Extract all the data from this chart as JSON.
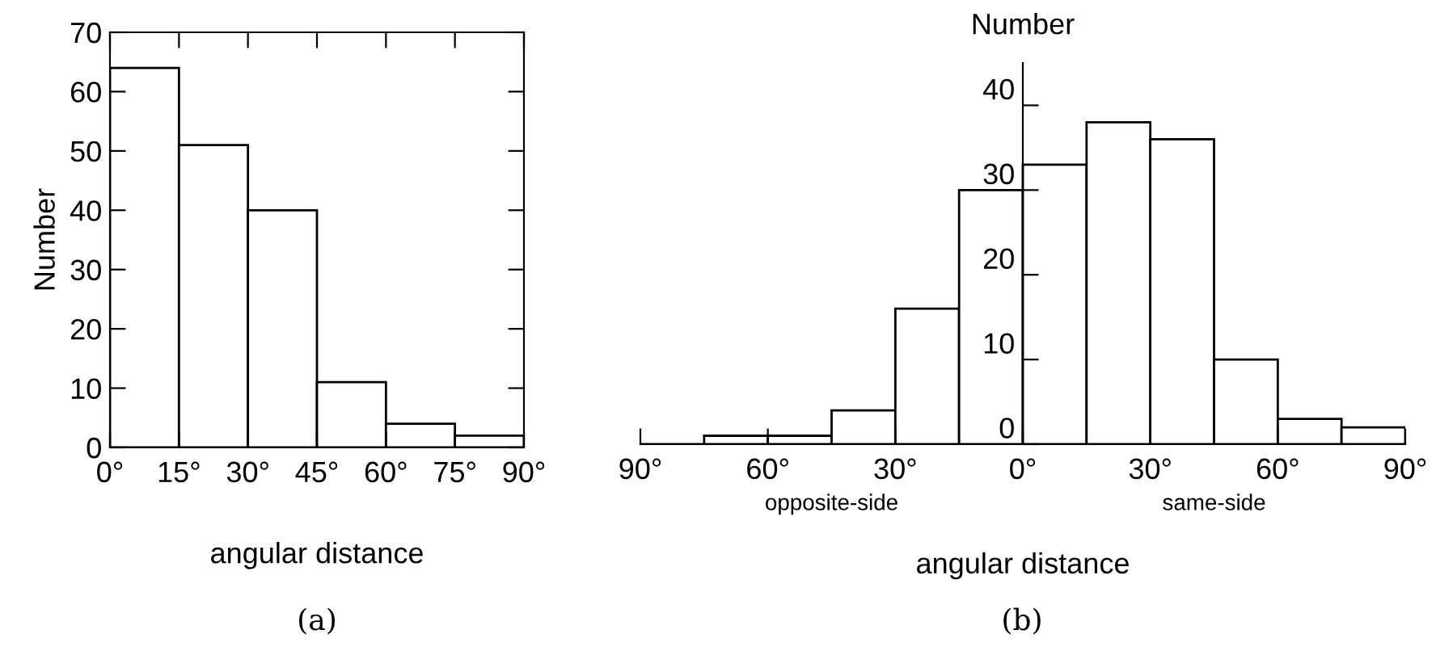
{
  "chart_data": [
    {
      "type": "histogram",
      "xlabel": "angular distance",
      "ylabel": "Number",
      "annotations": [
        "(a)"
      ],
      "color": "#000000",
      "bins": [
        0,
        15,
        30,
        45,
        60,
        75,
        90
      ],
      "values": [
        64,
        51,
        40,
        11,
        4,
        2
      ],
      "xlim": [
        0,
        90
      ],
      "xticks": [
        {
          "value": 0,
          "label": "0°"
        },
        {
          "value": 15,
          "label": "15°"
        },
        {
          "value": 30,
          "label": "30°"
        },
        {
          "value": 45,
          "label": "45°"
        },
        {
          "value": 60,
          "label": "60°"
        },
        {
          "value": 75,
          "label": "75°"
        },
        {
          "value": 90,
          "label": "90°"
        }
      ],
      "ylim": [
        0,
        70
      ],
      "yticks": [
        0,
        10,
        20,
        30,
        40,
        50,
        60,
        70
      ],
      "grid": false,
      "legend": false
    },
    {
      "type": "histogram",
      "xlabel": "angular distance",
      "ylabel": "Number",
      "annotations": [
        "opposite-side",
        "same-side",
        "(b)"
      ],
      "color": "#000000",
      "bins": [
        -90,
        -75,
        -60,
        -45,
        -30,
        -15,
        0,
        15,
        30,
        45,
        60,
        75,
        90
      ],
      "values": [
        0,
        1,
        1,
        4,
        16,
        30,
        33,
        38,
        36,
        10,
        3,
        2
      ],
      "xlim": [
        -90,
        90
      ],
      "xticks": [
        {
          "value": -90,
          "label": "90°"
        },
        {
          "value": -60,
          "label": "60°"
        },
        {
          "value": -30,
          "label": "30°"
        },
        {
          "value": 0,
          "label": "0°"
        },
        {
          "value": 30,
          "label": "30°"
        },
        {
          "value": 60,
          "label": "60°"
        },
        {
          "value": 90,
          "label": "90°"
        }
      ],
      "ylim": [
        0,
        45
      ],
      "yticks": [
        0,
        10,
        20,
        30,
        40
      ],
      "grid": false,
      "legend": false
    }
  ]
}
